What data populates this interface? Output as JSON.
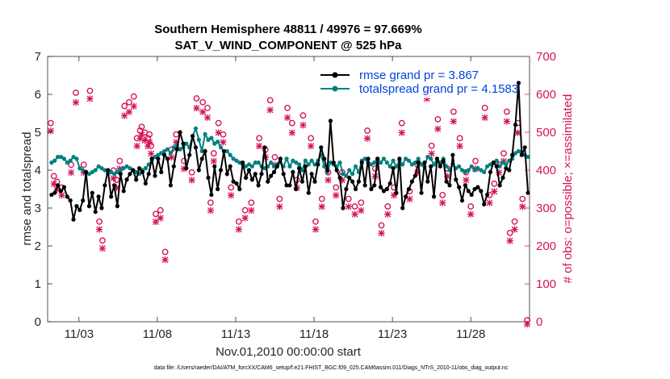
{
  "chart_data": {
    "type": "line",
    "title": "Southern Hemisphere 48811 / 49976 = 97.669%",
    "subtitle": "SAT_V_WIND_COMPONENT @ 525 hPa",
    "xlabel": "Nov.01,2010 00:00:00 start",
    "ylabel": "rmse and totalspread",
    "y2label": "# of obs: o=possible; ×=assimilated",
    "footer": "data file: /Users/raeder/DAI/ATM_forcXX/CAM6_setup/f.e21.FHIST_BGC.f09_025.CAM6assim.011/Diags_NTrS_2010-11/obs_diag_output.nc",
    "xlim": [
      1,
      31.75
    ],
    "ylim": [
      0,
      7
    ],
    "y2lim": [
      0,
      700
    ],
    "x_ticks": [
      3,
      8,
      13,
      18,
      23,
      28
    ],
    "x_tick_labels": [
      "11/03",
      "11/08",
      "11/13",
      "11/18",
      "11/23",
      "11/28"
    ],
    "y_ticks": [
      0,
      1,
      2,
      3,
      4,
      5,
      6,
      7
    ],
    "y_tick_labels": [
      "0",
      "1",
      "2",
      "3",
      "4",
      "5",
      "6",
      "7"
    ],
    "y2_ticks": [
      0,
      100,
      200,
      300,
      400,
      500,
      600,
      700
    ],
    "y2_tick_labels": [
      "0",
      "100",
      "200",
      "300",
      "400",
      "500",
      "600",
      "700"
    ],
    "colors": {
      "rmse": "#000000",
      "spread": "#008080",
      "obs": "#d4145a",
      "legend_text": "#0044dd"
    },
    "series": [
      {
        "name": "rmse grand pr = 3.867",
        "axis": "left",
        "values": [
          3.35,
          3.4,
          3.6,
          3.45,
          3.55,
          3.3,
          3.2,
          2.7,
          3.05,
          2.95,
          3.2,
          3.95,
          3.05,
          3.4,
          2.9,
          3.3,
          3.0,
          3.6,
          4.0,
          3.3,
          3.6,
          3.05,
          3.9,
          3.45,
          3.75,
          3.9,
          4.0,
          3.75,
          4.05,
          3.95,
          3.65,
          3.9,
          4.3,
          3.85,
          4.3,
          3.95,
          4.4,
          4.3,
          3.6,
          4.1,
          4.55,
          5.0,
          4.7,
          4.05,
          4.4,
          4.9,
          4.6,
          4.0,
          4.3,
          4.5,
          3.8,
          3.35,
          4.1,
          3.5,
          4.0,
          4.5,
          3.9,
          4.1,
          3.7,
          3.65,
          3.5,
          4.2,
          3.8,
          4.0,
          3.75,
          3.9,
          3.6,
          3.9,
          4.6,
          3.7,
          3.85,
          3.95,
          4.1,
          4.3,
          3.9,
          3.6,
          3.6,
          3.95,
          3.5,
          4.05,
          3.7,
          4.1,
          3.4,
          3.9,
          3.7,
          4.15,
          4.6,
          4.3,
          4.0,
          5.3,
          4.2,
          4.0,
          3.8,
          3.0,
          3.5,
          3.8,
          3.7,
          3.5,
          3.7,
          4.2,
          3.6,
          4.3,
          3.5,
          3.6,
          4.3,
          3.55,
          3.45,
          3.5,
          3.65,
          4.05,
          3.4,
          4.3,
          3.0,
          3.3,
          3.5,
          3.7,
          3.85,
          4.2,
          3.4,
          4.2,
          3.7,
          4.1,
          3.3,
          4.3,
          4.1,
          4.25,
          3.7,
          3.6,
          4.4,
          3.75,
          3.55,
          3.2,
          3.6,
          3.45,
          3.35,
          3.5,
          3.55,
          3.45,
          3.1,
          3.35,
          3.95,
          4.2,
          4.1,
          3.6,
          3.8,
          4.05,
          4.0,
          4.4,
          5.2,
          6.3,
          4.4,
          4.6,
          3.4
        ]
      },
      {
        "name": "totalspread grand pr = 4.1583",
        "axis": "left",
        "values": [
          4.2,
          4.25,
          4.35,
          4.35,
          4.3,
          4.2,
          4.25,
          4.35,
          4.3,
          4.05,
          4.0,
          3.95,
          3.9,
          3.95,
          4.0,
          4.1,
          4.05,
          4.0,
          3.9,
          3.95,
          3.9,
          3.95,
          4.0,
          4.05,
          4.1,
          4.05,
          4.0,
          3.95,
          3.9,
          4.0,
          4.05,
          4.15,
          4.25,
          4.35,
          4.4,
          4.45,
          4.5,
          4.55,
          4.45,
          4.6,
          4.65,
          4.55,
          4.6,
          4.7,
          4.6,
          4.9,
          5.1,
          4.8,
          4.5,
          4.95,
          4.8,
          4.85,
          4.7,
          4.75,
          4.6,
          4.5,
          4.5,
          4.4,
          4.3,
          4.25,
          4.2,
          4.15,
          4.1,
          4.15,
          4.1,
          4.2,
          4.2,
          4.1,
          4.05,
          4.1,
          4.2,
          4.1,
          4.15,
          4.2,
          4.1,
          4.3,
          4.1,
          4.25,
          4.2,
          4.15,
          4.0,
          4.25,
          4.15,
          4.25,
          4.15,
          4.25,
          4.4,
          4.1,
          3.95,
          4.2,
          4.15,
          4.1,
          4.2,
          3.9,
          3.85,
          4.0,
          3.9,
          4.1,
          3.95,
          4.25,
          4.3,
          4.2,
          4.15,
          4.2,
          4.3,
          4.2,
          4.3,
          4.2,
          4.1,
          4.25,
          4.1,
          4.25,
          4.15,
          4.3,
          4.25,
          4.15,
          4.2,
          4.3,
          4.15,
          4.1,
          4.35,
          4.3,
          4.15,
          4.3,
          4.2,
          4.3,
          4.1,
          4.0,
          4.15,
          4.05,
          4.1,
          4.0,
          3.95,
          4.0,
          4.1,
          4.0,
          4.05,
          4.0,
          3.95,
          4.1,
          4.15,
          4.2,
          4.25,
          4.1,
          4.2,
          4.15,
          4.25,
          4.3,
          4.45,
          4.5,
          4.45,
          4.4,
          4.35
        ]
      },
      {
        "name": "obs possible",
        "axis": "right",
        "marker": "o",
        "x": [
          1.2,
          1.4,
          1.6,
          1.9,
          2.5,
          2.8,
          3.3,
          3.7,
          4.3,
          4.5,
          5.2,
          5.4,
          5.6,
          5.9,
          6.2,
          6.5,
          6.7,
          6.9,
          7.0,
          7.2,
          7.4,
          7.5,
          7.6,
          7.9,
          8.2,
          8.5,
          8.9,
          9.2,
          9.7,
          10.2,
          10.5,
          10.9,
          11.2,
          11.4,
          11.6,
          11.9,
          12.2,
          12.7,
          13.2,
          13.6,
          14.0,
          14.5,
          14.9,
          15.2,
          15.5,
          15.8,
          16.3,
          16.6,
          16.9,
          17.3,
          17.8,
          18.1,
          18.5,
          18.9,
          19.4,
          19.8,
          20.2,
          20.6,
          21.0,
          21.4,
          21.9,
          22.3,
          22.7,
          23.1,
          23.6,
          24.1,
          24.6,
          25.2,
          25.5,
          25.9,
          26.2,
          26.5,
          26.9,
          27.3,
          27.7,
          28.0,
          28.3,
          28.9,
          29.2,
          29.5,
          29.8,
          30.1,
          30.3,
          30.5,
          30.8,
          31.0,
          31.3,
          31.6
        ],
        "values": [
          520,
          380,
          365,
          350,
          410,
          600,
          410,
          605,
          260,
          210,
          395,
          370,
          420,
          565,
          575,
          590,
          480,
          500,
          510,
          495,
          480,
          490,
          460,
          280,
          290,
          180,
          450,
          490,
          420,
          390,
          585,
          575,
          560,
          310,
          440,
          520,
          490,
          350,
          260,
          290,
          310,
          480,
          450,
          580,
          430,
          320,
          560,
          520,
          370,
          540,
          480,
          260,
          320,
          390,
          350,
          390,
          320,
          300,
          310,
          500,
          400,
          250,
          300,
          350,
          520,
          340,
          410,
          610,
          460,
          530,
          330,
          400,
          550,
          480,
          390,
          300,
          420,
          560,
          330,
          360,
          410,
          440,
          550,
          230,
          260,
          520,
          320,
          0
        ]
      },
      {
        "name": "obs assimilated",
        "axis": "right",
        "marker": "x",
        "x": [
          1.2,
          1.4,
          1.6,
          1.9,
          2.5,
          2.8,
          3.3,
          3.7,
          4.3,
          4.5,
          5.2,
          5.4,
          5.6,
          5.9,
          6.2,
          6.5,
          6.7,
          6.9,
          7.0,
          7.2,
          7.4,
          7.5,
          7.6,
          7.9,
          8.2,
          8.5,
          8.9,
          9.2,
          9.7,
          10.2,
          10.5,
          10.9,
          11.2,
          11.4,
          11.6,
          11.9,
          12.2,
          12.7,
          13.2,
          13.6,
          14.0,
          14.5,
          14.9,
          15.2,
          15.5,
          15.8,
          16.3,
          16.6,
          16.9,
          17.3,
          17.8,
          18.1,
          18.5,
          18.9,
          19.4,
          19.8,
          20.2,
          20.6,
          21.0,
          21.4,
          21.9,
          22.3,
          22.7,
          23.1,
          23.6,
          24.1,
          24.6,
          25.2,
          25.5,
          25.9,
          26.2,
          26.5,
          26.9,
          27.3,
          27.7,
          28.0,
          28.3,
          28.9,
          29.2,
          29.5,
          29.8,
          30.1,
          30.3,
          30.5,
          30.8,
          31.0,
          31.3,
          31.6
        ],
        "values": [
          510,
          370,
          355,
          340,
          400,
          585,
          400,
          595,
          250,
          200,
          385,
          360,
          410,
          550,
          560,
          575,
          470,
          490,
          500,
          485,
          470,
          480,
          450,
          270,
          280,
          170,
          440,
          480,
          410,
          380,
          570,
          560,
          545,
          300,
          430,
          505,
          480,
          340,
          250,
          280,
          300,
          470,
          440,
          565,
          420,
          310,
          545,
          505,
          360,
          525,
          470,
          250,
          310,
          380,
          340,
          380,
          310,
          290,
          300,
          490,
          390,
          240,
          290,
          340,
          505,
          330,
          400,
          595,
          450,
          515,
          320,
          390,
          535,
          470,
          380,
          290,
          410,
          545,
          320,
          350,
          400,
          430,
          535,
          220,
          250,
          505,
          310,
          0
        ]
      }
    ]
  }
}
